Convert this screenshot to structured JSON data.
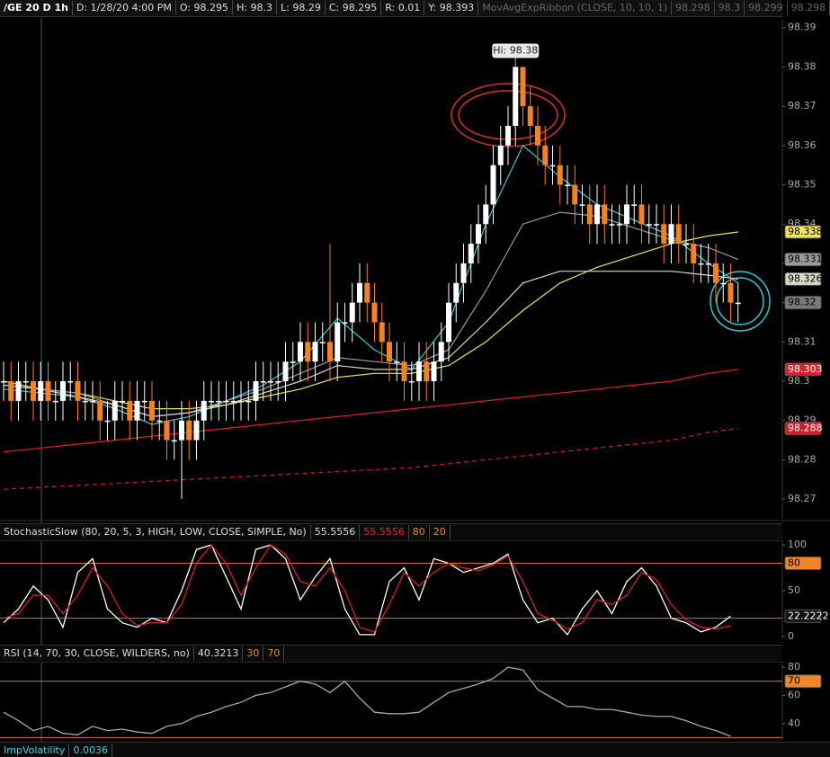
{
  "header": {
    "symbol": "/GE 20 D 1h",
    "fields": [
      "D: 1/28/20 4:00 PM",
      "O: 98.295",
      "H: 98.3",
      "L: 98.29",
      "C: 98.295",
      "R: 0.01",
      "Y: 98.393"
    ],
    "study": "MovAvgExpRibbon (CLOSE, 10, 10, 1)",
    "study_values": [
      98.298,
      98.3,
      98.299,
      98.298
    ]
  },
  "chart_data": [
    {
      "type": "candlestick",
      "annotation": "Hi: 98.38",
      "up_color": "#ffffff",
      "down_color": "#f5821f",
      "ylim": [
        98.265,
        98.392
      ],
      "yticks": [
        98.27,
        98.28,
        98.29,
        98.3,
        98.31,
        98.32,
        98.33,
        98.34,
        98.35,
        98.36,
        98.37,
        98.38,
        98.39
      ],
      "open": [
        98.3,
        98.3,
        98.295,
        98.3,
        98.3,
        98.295,
        98.3,
        98.295,
        98.295,
        98.3,
        98.3,
        98.295,
        98.295,
        98.295,
        98.29,
        98.29,
        98.295,
        98.295,
        98.29,
        98.295,
        98.295,
        98.29,
        98.29,
        98.285,
        98.285,
        98.29,
        98.285,
        98.29,
        98.295,
        98.295,
        98.295,
        98.295,
        98.295,
        98.295,
        98.295,
        98.3,
        98.3,
        98.3,
        98.3,
        98.305,
        98.305,
        98.31,
        98.305,
        98.31,
        98.31,
        98.305,
        98.315,
        98.315,
        98.32,
        98.325,
        98.32,
        98.315,
        98.31,
        98.305,
        98.305,
        98.3,
        98.3,
        98.305,
        98.3,
        98.305,
        98.31,
        98.32,
        98.325,
        98.33,
        98.335,
        98.34,
        98.345,
        98.355,
        98.36,
        98.365,
        98.38,
        98.37,
        98.365,
        98.36,
        98.355,
        98.355,
        98.35,
        98.35,
        98.345,
        98.345,
        98.34,
        98.345,
        98.34,
        98.34,
        98.34,
        98.345,
        98.345,
        98.34,
        98.34,
        98.34,
        98.335,
        98.34,
        98.335,
        98.335,
        98.33,
        98.33,
        98.33,
        98.325,
        98.325,
        98.32
      ],
      "high": [
        98.305,
        98.305,
        98.305,
        98.305,
        98.305,
        98.305,
        98.305,
        98.3,
        98.305,
        98.305,
        98.305,
        98.3,
        98.3,
        98.3,
        98.295,
        98.3,
        98.3,
        98.3,
        98.3,
        98.3,
        98.3,
        98.295,
        98.295,
        98.29,
        98.295,
        98.295,
        98.295,
        98.3,
        98.3,
        98.3,
        98.3,
        98.3,
        98.3,
        98.3,
        98.305,
        98.305,
        98.305,
        98.305,
        98.31,
        98.31,
        98.315,
        98.315,
        98.315,
        98.315,
        98.335,
        98.32,
        98.32,
        98.325,
        98.33,
        98.33,
        98.325,
        98.32,
        98.315,
        98.31,
        98.31,
        98.305,
        98.31,
        98.31,
        98.31,
        98.315,
        98.325,
        98.33,
        98.335,
        98.34,
        98.345,
        98.35,
        98.36,
        98.365,
        98.37,
        98.38,
        98.38,
        98.375,
        98.37,
        98.365,
        98.36,
        98.36,
        98.355,
        98.355,
        98.35,
        98.35,
        98.35,
        98.35,
        98.345,
        98.345,
        98.35,
        98.35,
        98.35,
        98.345,
        98.345,
        98.345,
        98.345,
        98.345,
        98.34,
        98.34,
        98.335,
        98.335,
        98.335,
        98.33,
        98.33,
        98.325
      ],
      "low": [
        98.295,
        98.29,
        98.29,
        98.295,
        98.29,
        98.29,
        98.29,
        98.29,
        98.29,
        98.295,
        98.29,
        98.29,
        98.29,
        98.285,
        98.285,
        98.285,
        98.29,
        98.285,
        98.285,
        98.29,
        98.285,
        98.285,
        98.28,
        98.28,
        98.27,
        98.28,
        98.28,
        98.285,
        98.29,
        98.29,
        98.29,
        98.29,
        98.29,
        98.29,
        98.29,
        98.295,
        98.295,
        98.295,
        98.295,
        98.3,
        98.3,
        98.3,
        98.3,
        98.305,
        98.3,
        98.3,
        98.31,
        98.31,
        98.315,
        98.315,
        98.31,
        98.305,
        98.3,
        98.3,
        98.295,
        98.295,
        98.295,
        98.295,
        98.295,
        98.3,
        98.305,
        98.315,
        98.32,
        98.325,
        98.33,
        98.335,
        98.34,
        98.35,
        98.355,
        98.36,
        98.365,
        98.36,
        98.355,
        98.35,
        98.35,
        98.345,
        98.345,
        98.34,
        98.34,
        98.335,
        98.335,
        98.335,
        98.335,
        98.335,
        98.335,
        98.34,
        98.335,
        98.335,
        98.335,
        98.33,
        98.33,
        98.33,
        98.33,
        98.325,
        98.325,
        98.325,
        98.32,
        98.32,
        98.315,
        98.315
      ],
      "close": [
        98.3,
        98.295,
        98.3,
        98.3,
        98.295,
        98.3,
        98.295,
        98.295,
        98.3,
        98.3,
        98.295,
        98.295,
        98.295,
        98.29,
        98.29,
        98.295,
        98.295,
        98.29,
        98.295,
        98.295,
        98.29,
        98.29,
        98.285,
        98.285,
        98.29,
        98.285,
        98.29,
        98.295,
        98.295,
        98.295,
        98.295,
        98.295,
        98.295,
        98.295,
        98.3,
        98.3,
        98.3,
        98.3,
        98.305,
        98.305,
        98.31,
        98.305,
        98.31,
        98.31,
        98.305,
        98.315,
        98.315,
        98.32,
        98.325,
        98.32,
        98.315,
        98.31,
        98.305,
        98.305,
        98.3,
        98.3,
        98.305,
        98.3,
        98.305,
        98.31,
        98.32,
        98.325,
        98.33,
        98.335,
        98.34,
        98.345,
        98.355,
        98.36,
        98.365,
        98.38,
        98.37,
        98.365,
        98.36,
        98.355,
        98.355,
        98.35,
        98.35,
        98.345,
        98.345,
        98.34,
        98.345,
        98.34,
        98.34,
        98.34,
        98.345,
        98.345,
        98.34,
        98.34,
        98.34,
        98.335,
        98.34,
        98.335,
        98.335,
        98.33,
        98.33,
        98.33,
        98.325,
        98.325,
        98.32,
        98.32
      ],
      "series": [
        {
          "color": "#3cc8d8",
          "x": [
            0,
            5,
            10,
            15,
            20,
            25,
            30,
            35,
            40,
            45,
            50,
            55,
            60,
            65,
            70,
            75,
            80,
            85,
            90,
            95,
            99
          ],
          "values": [
            98.298,
            98.297,
            98.296,
            98.293,
            98.289,
            98.291,
            98.295,
            98.299,
            98.305,
            98.316,
            98.308,
            98.303,
            98.315,
            98.34,
            98.36,
            98.352,
            98.345,
            98.341,
            98.337,
            98.33,
            98.325
          ]
        },
        {
          "color": "#f2e35a",
          "x": [
            0,
            5,
            10,
            15,
            20,
            25,
            30,
            35,
            40,
            45,
            50,
            55,
            60,
            65,
            70,
            75,
            80,
            85,
            90,
            95,
            99
          ],
          "values": [
            98.3,
            98.298,
            98.297,
            98.295,
            98.293,
            98.293,
            98.294,
            98.296,
            98.298,
            98.301,
            98.302,
            98.302,
            98.304,
            98.31,
            98.318,
            98.325,
            98.329,
            98.332,
            98.335,
            98.337,
            98.338
          ]
        },
        {
          "color": "#9a9a9a",
          "x": [
            0,
            5,
            10,
            15,
            20,
            25,
            30,
            35,
            40,
            45,
            50,
            55,
            60,
            65,
            70,
            75,
            80,
            85,
            90,
            95,
            99
          ],
          "values": [
            98.299,
            98.298,
            98.297,
            98.294,
            98.291,
            98.292,
            98.295,
            98.298,
            98.302,
            98.306,
            98.305,
            98.304,
            98.308,
            98.323,
            98.34,
            98.343,
            98.342,
            98.339,
            98.336,
            98.334,
            98.331
          ]
        },
        {
          "color": "#d8d8c8",
          "x": [
            0,
            5,
            10,
            15,
            20,
            25,
            30,
            35,
            40,
            45,
            50,
            55,
            60,
            65,
            70,
            75,
            80,
            85,
            90,
            95,
            99
          ],
          "values": [
            98.299,
            98.298,
            98.296,
            98.294,
            98.291,
            98.292,
            98.294,
            98.297,
            98.3,
            98.304,
            98.303,
            98.303,
            98.306,
            98.315,
            98.325,
            98.328,
            98.328,
            98.328,
            98.328,
            98.327,
            98.326
          ]
        },
        {
          "color": "#e0202a",
          "x": [
            0,
            5,
            10,
            15,
            20,
            25,
            30,
            35,
            40,
            45,
            50,
            55,
            60,
            65,
            70,
            75,
            80,
            85,
            90,
            95,
            99
          ],
          "values": [
            98.282,
            98.283,
            98.284,
            98.285,
            98.286,
            98.287,
            98.288,
            98.289,
            98.29,
            98.291,
            98.292,
            98.293,
            98.294,
            98.295,
            98.296,
            98.297,
            98.298,
            98.299,
            98.3,
            98.302,
            98.303
          ]
        },
        {
          "color": "#d01e28",
          "dash": true,
          "x": [
            0,
            5,
            10,
            15,
            20,
            25,
            30,
            35,
            40,
            45,
            50,
            55,
            60,
            65,
            70,
            75,
            80,
            85,
            90,
            95,
            99
          ],
          "values": [
            98.2725,
            98.273,
            98.2735,
            98.274,
            98.2745,
            98.275,
            98.2755,
            98.276,
            98.2765,
            98.277,
            98.2775,
            98.278,
            98.279,
            98.28,
            98.281,
            98.282,
            98.283,
            98.284,
            98.285,
            98.287,
            98.288
          ]
        }
      ]
    },
    {
      "type": "line",
      "title": "StochasticSlow (80, 20, 5, 3, HIGH, LOW, CLOSE, SIMPLE, No)",
      "readout": [
        55.5556,
        55.5556
      ],
      "overbought": 80,
      "oversold": 20,
      "ylim": [
        -4,
        106
      ],
      "yticks": [
        0,
        50,
        100
      ],
      "x": [
        0,
        2,
        4,
        6,
        8,
        10,
        12,
        14,
        16,
        18,
        20,
        22,
        24,
        26,
        28,
        30,
        32,
        34,
        36,
        38,
        40,
        42,
        44,
        46,
        48,
        50,
        52,
        54,
        56,
        58,
        60,
        62,
        64,
        66,
        68,
        70,
        72,
        74,
        76,
        78,
        80,
        82,
        84,
        86,
        88,
        90,
        92,
        94,
        96,
        98
      ],
      "series": [
        {
          "color": "#ffffff",
          "values": [
            15,
            30,
            55,
            40,
            10,
            70,
            85,
            30,
            15,
            10,
            20,
            15,
            50,
            95,
            100,
            65,
            30,
            95,
            100,
            85,
            40,
            65,
            85,
            30,
            2,
            2,
            60,
            75,
            40,
            85,
            80,
            70,
            75,
            80,
            90,
            40,
            15,
            20,
            2,
            30,
            50,
            25,
            60,
            75,
            55,
            20,
            15,
            5,
            10,
            22.2222
          ]
        },
        {
          "color": "#d42020",
          "values": [
            20,
            25,
            45,
            45,
            25,
            45,
            75,
            55,
            25,
            12,
            15,
            15,
            35,
            80,
            100,
            80,
            45,
            75,
            100,
            90,
            60,
            55,
            75,
            50,
            10,
            5,
            35,
            70,
            55,
            70,
            80,
            75,
            72,
            78,
            88,
            60,
            25,
            18,
            8,
            15,
            40,
            35,
            45,
            70,
            62,
            35,
            18,
            10,
            8,
            12
          ]
        }
      ]
    },
    {
      "type": "line",
      "title": "RSI (14, 70, 30, CLOSE, WILDERS, no)",
      "readout": [
        40.3213
      ],
      "overbought": 70,
      "oversold": 30,
      "ylim": [
        29,
        84.5
      ],
      "yticks": [
        40,
        60,
        80
      ],
      "x": [
        0,
        2,
        4,
        6,
        8,
        10,
        12,
        14,
        16,
        18,
        20,
        22,
        24,
        26,
        28,
        30,
        32,
        34,
        36,
        38,
        40,
        42,
        44,
        46,
        48,
        50,
        52,
        54,
        56,
        58,
        60,
        62,
        64,
        66,
        68,
        70,
        72,
        74,
        76,
        78,
        80,
        82,
        84,
        86,
        88,
        90,
        92,
        94,
        96,
        98
      ],
      "series": [
        {
          "color": "#a8a8a8",
          "values": [
            48,
            42,
            35,
            38,
            33,
            32,
            38,
            35,
            36,
            34,
            33,
            38,
            40,
            45,
            48,
            52,
            55,
            60,
            62,
            66,
            70,
            68,
            62,
            70,
            58,
            48,
            47,
            47,
            48,
            55,
            62,
            65,
            68,
            72,
            80,
            78,
            64,
            58,
            52,
            52,
            50,
            50,
            48,
            46,
            45,
            45,
            42,
            38,
            35,
            31
          ]
        }
      ]
    }
  ],
  "footer": {
    "title": "ImpVolatility",
    "value": 0.0036
  }
}
